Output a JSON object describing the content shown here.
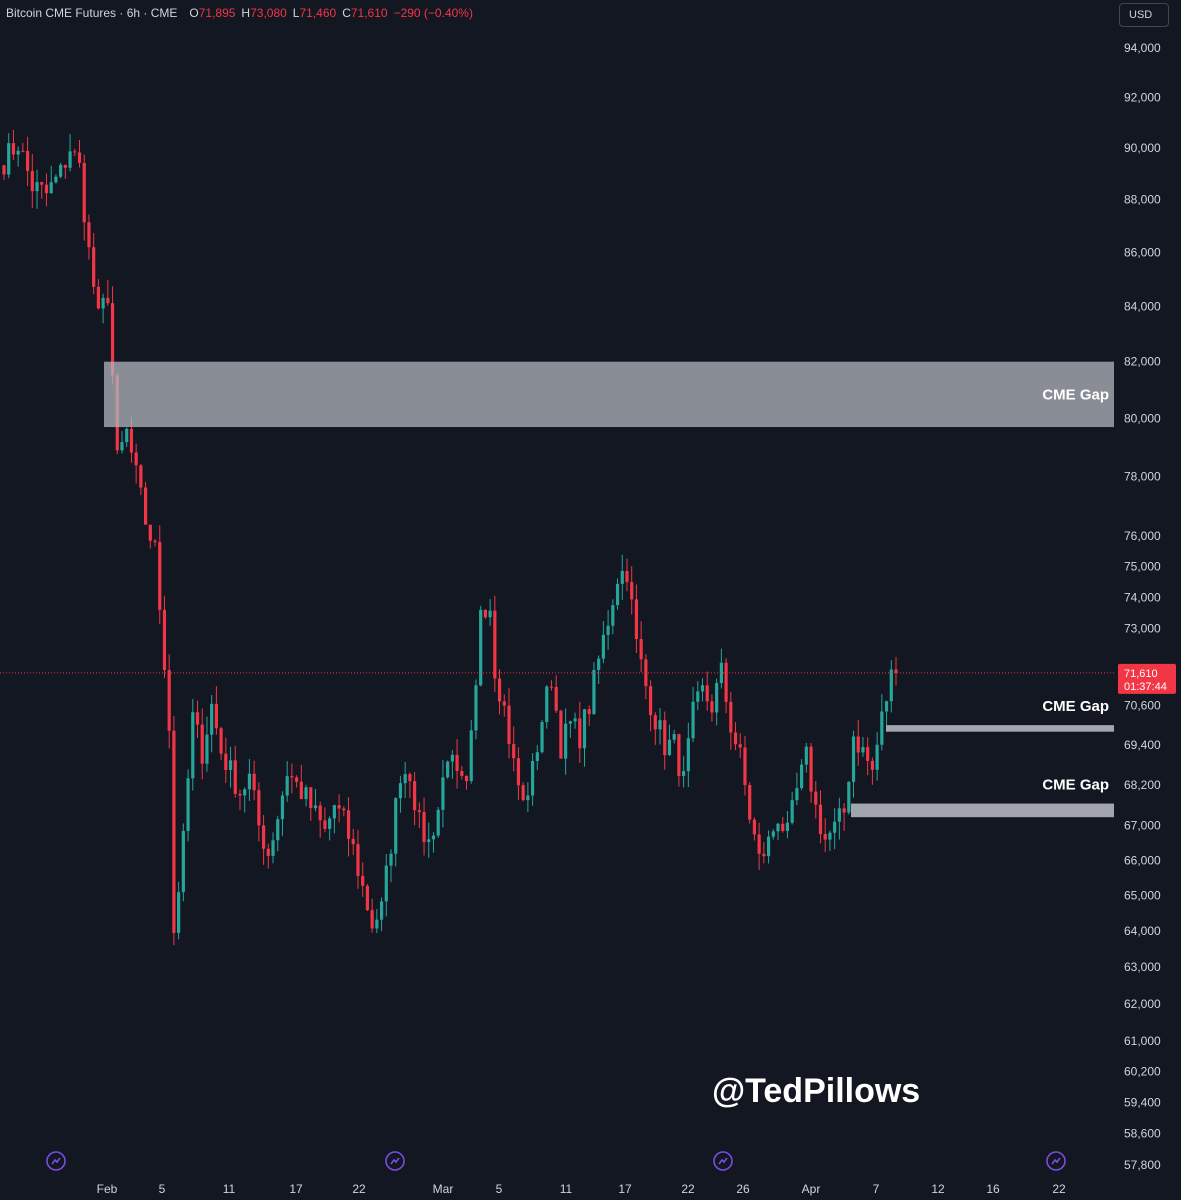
{
  "header": {
    "symbol": "Bitcoin CME Futures · 6h · CME",
    "open_label": "O",
    "open_value": "71,895",
    "high_label": "H",
    "high_value": "73,080",
    "low_label": "L",
    "low_value": "71,460",
    "close_label": "C",
    "close_value": "71,610",
    "change": "−290 (−0.40%)"
  },
  "currency_button": "USD",
  "watermark": "@TedPillows",
  "colors": {
    "background": "#131722",
    "up": "#26a69a",
    "down": "#f23645",
    "gap_fill": "#b2b5be",
    "text": "#d1d4dc",
    "event_icon": "#7b4ce0"
  },
  "chart_data": {
    "type": "candlestick",
    "interval": "6h",
    "price_scale": "log",
    "ylim": [
      57400,
      95200
    ],
    "y_ticks": [
      94000,
      92000,
      90000,
      88000,
      86000,
      84000,
      82000,
      80000,
      78000,
      76000,
      75000,
      74000,
      73000,
      70600,
      69400,
      68200,
      67000,
      66000,
      65000,
      64000,
      63000,
      62000,
      61000,
      60200,
      59400,
      58600,
      57800
    ],
    "x_ticks": [
      "Feb",
      "5",
      "11",
      "17",
      "22",
      "Mar",
      "5",
      "11",
      "17",
      "22",
      "26",
      "Apr",
      "7",
      "12",
      "16",
      "22"
    ],
    "last_price": {
      "value": "71,610",
      "countdown": "01:37:44"
    },
    "gaps": [
      {
        "label": "CME Gap",
        "low": 79700,
        "high": 82000
      },
      {
        "label": "CME Gap",
        "low": 69800,
        "high": 70000
      },
      {
        "label": "CME Gap",
        "low": 67250,
        "high": 67650
      }
    ],
    "trend_points": [
      [
        0,
        89500
      ],
      [
        3,
        90200
      ],
      [
        6,
        88500
      ],
      [
        9,
        88200
      ],
      [
        12,
        89000
      ],
      [
        14,
        90000
      ],
      [
        16,
        89200
      ],
      [
        18,
        86000
      ],
      [
        20,
        83500
      ],
      [
        22,
        84500
      ],
      [
        24,
        78500
      ],
      [
        26,
        79500
      ],
      [
        28,
        78000
      ],
      [
        30,
        76500
      ],
      [
        32,
        75500
      ],
      [
        34,
        72000
      ],
      [
        35,
        70000
      ],
      [
        36,
        64000
      ],
      [
        38,
        66500
      ],
      [
        40,
        70200
      ],
      [
        42,
        69200
      ],
      [
        44,
        70600
      ],
      [
        46,
        69200
      ],
      [
        48,
        68600
      ],
      [
        50,
        68000
      ],
      [
        52,
        68400
      ],
      [
        54,
        67000
      ],
      [
        56,
        66200
      ],
      [
        58,
        67300
      ],
      [
        60,
        68600
      ],
      [
        62,
        68200
      ],
      [
        64,
        67800
      ],
      [
        66,
        67300
      ],
      [
        68,
        66800
      ],
      [
        70,
        67600
      ],
      [
        72,
        67100
      ],
      [
        74,
        66300
      ],
      [
        76,
        65200
      ],
      [
        78,
        64200
      ],
      [
        80,
        64600
      ],
      [
        82,
        66500
      ],
      [
        84,
        68600
      ],
      [
        86,
        68600
      ],
      [
        88,
        67000
      ],
      [
        90,
        66500
      ],
      [
        92,
        67500
      ],
      [
        94,
        69200
      ],
      [
        96,
        68300
      ],
      [
        98,
        68000
      ],
      [
        100,
        71000
      ],
      [
        101,
        73800
      ],
      [
        103,
        73800
      ],
      [
        104,
        71800
      ],
      [
        106,
        70500
      ],
      [
        108,
        68800
      ],
      [
        110,
        67600
      ],
      [
        112,
        68600
      ],
      [
        114,
        70200
      ],
      [
        116,
        71500
      ],
      [
        118,
        69400
      ],
      [
        120,
        70000
      ],
      [
        122,
        69700
      ],
      [
        124,
        70600
      ],
      [
        126,
        72000
      ],
      [
        128,
        73300
      ],
      [
        130,
        74700
      ],
      [
        132,
        74900
      ],
      [
        134,
        72500
      ],
      [
        136,
        71200
      ],
      [
        138,
        70200
      ],
      [
        140,
        69400
      ],
      [
        142,
        69400
      ],
      [
        144,
        68300
      ],
      [
        146,
        70300
      ],
      [
        148,
        71000
      ],
      [
        150,
        70600
      ],
      [
        152,
        71600
      ],
      [
        154,
        70000
      ],
      [
        156,
        69000
      ],
      [
        158,
        67300
      ],
      [
        160,
        66000
      ],
      [
        162,
        66500
      ],
      [
        164,
        67300
      ],
      [
        166,
        66700
      ],
      [
        168,
        68000
      ],
      [
        170,
        69000
      ],
      [
        172,
        67500
      ],
      [
        174,
        66600
      ],
      [
        176,
        66900
      ],
      [
        178,
        67400
      ],
      [
        180,
        69700
      ],
      [
        182,
        69200
      ],
      [
        184,
        68600
      ],
      [
        186,
        70200
      ],
      [
        188,
        71500
      ],
      [
        189,
        71610
      ]
    ],
    "n_bars": 190,
    "x_axis_positions": {
      "Feb": 22,
      "5": 36,
      "11": 50,
      "17": 64,
      "22": 78,
      "Mar": 92,
      "5b": 106,
      "11b": 120,
      "17b": 134,
      "22b": 148,
      "26": 160,
      "Apr": 174,
      "7": 188,
      "12": 202,
      "16": 214,
      "22c": 228
    }
  }
}
